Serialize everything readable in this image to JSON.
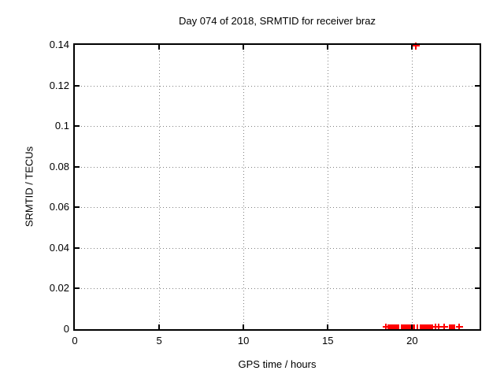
{
  "chart": {
    "title": "Day 074 of 2018, SRMTID for receiver braz",
    "xlabel": "GPS time / hours",
    "ylabel": "SRMTID / TECUs"
  },
  "colors": {
    "background": "#ffffff",
    "foreground": "#000000",
    "grid": "#808080",
    "series": "#ff0000"
  },
  "chart_data": {
    "type": "scatter",
    "marker": "plus",
    "title": "Day 074 of 2018, SRMTID for receiver braz",
    "xlabel": "GPS time / hours",
    "ylabel": "SRMTID / TECUs",
    "xlim": [
      0,
      24
    ],
    "ylim": [
      0,
      0.14
    ],
    "grid": true,
    "legend": false,
    "xticks": [
      {
        "v": 0,
        "label": "0"
      },
      {
        "v": 5,
        "label": "5"
      },
      {
        "v": 10,
        "label": "10"
      },
      {
        "v": 15,
        "label": "15"
      },
      {
        "v": 20,
        "label": "20"
      }
    ],
    "yticks": [
      {
        "v": 0,
        "label": "0"
      },
      {
        "v": 0.02,
        "label": "0.02"
      },
      {
        "v": 0.04,
        "label": "0.04"
      },
      {
        "v": 0.06,
        "label": "0.06"
      },
      {
        "v": 0.08,
        "label": "0.08"
      },
      {
        "v": 0.1,
        "label": "0.1"
      },
      {
        "v": 0.12,
        "label": "0.12"
      },
      {
        "v": 0.14,
        "label": "0.14"
      }
    ],
    "outlier_point": {
      "x": 20.2,
      "y": 0.1395
    },
    "near_zero_points": {
      "y": 0.001,
      "cluster_ranges_hours": [
        [
          18.54,
          19.24
        ],
        [
          19.33,
          19.94
        ],
        [
          20.03,
          20.17
        ],
        [
          20.26,
          20.36
        ],
        [
          20.45,
          21.24
        ],
        [
          22.18,
          22.55
        ]
      ],
      "isolated_hours": [
        18.44,
        21.37,
        21.56,
        21.92,
        22.8
      ]
    }
  }
}
